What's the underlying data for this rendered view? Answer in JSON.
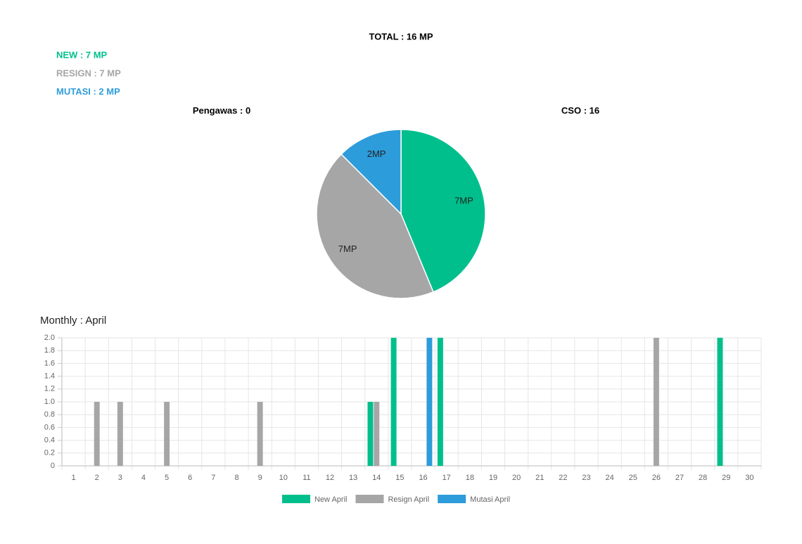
{
  "header": {
    "total": "TOTAL : 16 MP",
    "new": "NEW : 7 MP",
    "resign": "RESIGN : 7 MP",
    "mutasi": "MUTASI : 2 MP",
    "pengawas": "Pengawas : 0",
    "cso": "CSO : 16"
  },
  "chart_data": [
    {
      "type": "pie",
      "values": [
        7,
        7,
        2
      ],
      "value_labels": [
        "7MP",
        "7MP",
        "2MP"
      ],
      "colors": [
        "#00bf8c",
        "#a6a6a6",
        "#2d9cdb"
      ]
    },
    {
      "type": "bar",
      "title": "Monthly : April",
      "categories": [
        "1",
        "2",
        "3",
        "4",
        "5",
        "6",
        "7",
        "8",
        "9",
        "10",
        "11",
        "12",
        "13",
        "14",
        "15",
        "16",
        "17",
        "18",
        "19",
        "20",
        "21",
        "22",
        "23",
        "24",
        "25",
        "26",
        "27",
        "28",
        "29",
        "30"
      ],
      "series": [
        {
          "name": "New April",
          "color": "#00bf8c",
          "values": [
            0,
            0,
            0,
            0,
            0,
            0,
            0,
            0,
            0,
            0,
            0,
            0,
            0,
            1,
            2,
            0,
            2,
            0,
            0,
            0,
            0,
            0,
            0,
            0,
            0,
            0,
            0,
            0,
            2,
            0
          ]
        },
        {
          "name": "Resign April",
          "color": "#a6a6a6",
          "values": [
            0,
            1,
            1,
            0,
            1,
            0,
            0,
            0,
            1,
            0,
            0,
            0,
            0,
            1,
            0,
            0,
            0,
            0,
            0,
            0,
            0,
            0,
            0,
            0,
            0,
            2,
            0,
            0,
            0,
            0
          ]
        },
        {
          "name": "Mutasi April",
          "color": "#2d9cdb",
          "values": [
            0,
            0,
            0,
            0,
            0,
            0,
            0,
            0,
            0,
            0,
            0,
            0,
            0,
            0,
            0,
            2,
            0,
            0,
            0,
            0,
            0,
            0,
            0,
            0,
            0,
            0,
            0,
            0,
            0,
            0
          ]
        }
      ],
      "ylim": [
        0,
        2
      ],
      "yticks": [
        0,
        0.2,
        0.4,
        0.6,
        0.8,
        {
          "value": 1,
          "label": "1.0"
        },
        1.2,
        1.4,
        1.6,
        1.8,
        {
          "value": 2,
          "label": "2.0"
        }
      ],
      "grid": true
    }
  ]
}
